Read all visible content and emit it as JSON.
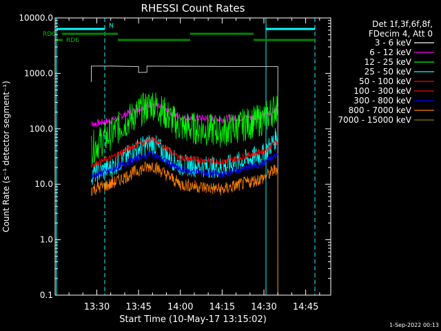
{
  "chart_data": {
    "type": "line",
    "title": "RHESSI Count Rates",
    "xlabel": "Start Time (10-May-17 13:15:02)",
    "ylabel": "Count Rate (s⁻¹ detector segment⁻¹)",
    "y_scale": "log",
    "ylim": [
      0.1,
      10000
    ],
    "xlim": [
      "13:15:02",
      "14:54:00"
    ],
    "x_ticks": [
      "13:30",
      "13:45",
      "14:00",
      "14:15",
      "14:30",
      "14:45"
    ],
    "y_ticks": [
      "0.1",
      "1.0",
      "10.0",
      "100.0",
      "1000.0",
      "10000.0"
    ],
    "legend_position": "right",
    "legend_header": [
      "Det 1f,3f,6f,8f,",
      "FDecim 4, Att 0"
    ],
    "series": [
      {
        "name": "3 - 6 keV",
        "color": "#ffffff",
        "x": [
          "13:28",
          "13:28",
          "13:35",
          "13:45",
          "13:45",
          "13:48",
          "13:48",
          "14:35"
        ],
        "values": [
          700,
          1350,
          1350,
          1350,
          1050,
          1050,
          1350,
          1350
        ]
      },
      {
        "name": "6 - 12 keV",
        "color": "#ff00ff",
        "x": [
          "13:28",
          "13:35",
          "13:45",
          "13:50",
          "14:00",
          "14:15",
          "14:30",
          "14:35"
        ],
        "values": [
          120,
          140,
          230,
          280,
          160,
          150,
          170,
          230
        ]
      },
      {
        "name": "12 - 25 keV",
        "color": "#00ff00",
        "x": [
          "13:28",
          "13:35",
          "13:45",
          "13:50",
          "14:00",
          "14:15",
          "14:30",
          "14:35"
        ],
        "values": [
          45,
          80,
          200,
          290,
          110,
          90,
          150,
          260
        ]
      },
      {
        "name": "25 - 50 keV",
        "color": "#00ffff",
        "x": [
          "13:28",
          "13:35",
          "13:45",
          "13:50",
          "14:00",
          "14:15",
          "14:30",
          "14:35"
        ],
        "values": [
          15,
          20,
          45,
          55,
          22,
          20,
          35,
          75
        ]
      },
      {
        "name": "50 - 100 keV",
        "color": "#ff0000",
        "x": [
          "13:28",
          "13:35",
          "13:45",
          "13:50",
          "14:00",
          "14:15",
          "14:30",
          "14:35"
        ],
        "values": [
          22,
          30,
          55,
          65,
          30,
          25,
          40,
          60
        ]
      },
      {
        "name": "100 - 300 keV",
        "color": "#ff0000",
        "x": [
          "13:28",
          "13:35",
          "13:45",
          "13:50",
          "14:00",
          "14:15",
          "14:30",
          "14:35"
        ],
        "values": [
          22,
          30,
          55,
          65,
          30,
          25,
          40,
          60
        ]
      },
      {
        "name": "300 - 800 keV",
        "color": "#0000ff",
        "x": [
          "13:28",
          "13:35",
          "13:45",
          "13:50",
          "14:00",
          "14:15",
          "14:30",
          "14:35"
        ],
        "values": [
          14,
          18,
          30,
          36,
          18,
          15,
          24,
          35
        ]
      },
      {
        "name": "800 - 7000 keV",
        "color": "#ff8000",
        "x": [
          "13:28",
          "13:35",
          "13:45",
          "13:50",
          "14:00",
          "14:15",
          "14:30",
          "14:35"
        ],
        "values": [
          8,
          10,
          18,
          22,
          10,
          8,
          13,
          20
        ]
      },
      {
        "name": "7000 - 15000 keV",
        "color": "#808000",
        "x": [],
        "values": []
      }
    ],
    "annotations": {
      "flag_labels": [
        "RD0",
        "RD6",
        "N"
      ],
      "timestamp": "1-Sep-2022 00:13"
    }
  }
}
